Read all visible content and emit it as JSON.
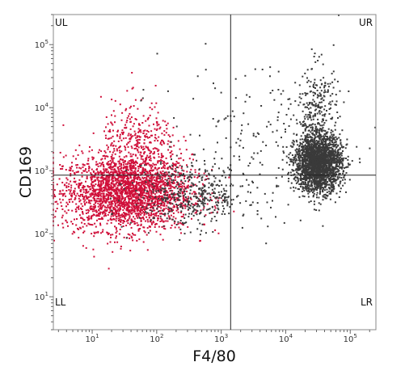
{
  "chart_data": {
    "type": "scatter",
    "xlabel": "F4/80",
    "ylabel": "CD169",
    "x_scale": "log",
    "y_scale": "log",
    "xlim": [
      2.5,
      250000
    ],
    "ylim": [
      3,
      300000
    ],
    "x_ticks": [
      {
        "value": 10,
        "base": "10",
        "exp": "1"
      },
      {
        "value": 100,
        "base": "10",
        "exp": "2"
      },
      {
        "value": 1000,
        "base": "10",
        "exp": "3"
      },
      {
        "value": 10000,
        "base": "10",
        "exp": "4"
      },
      {
        "value": 100000,
        "base": "10",
        "exp": "5"
      }
    ],
    "y_ticks": [
      {
        "value": 10,
        "base": "10",
        "exp": "1"
      },
      {
        "value": 100,
        "base": "10",
        "exp": "2"
      },
      {
        "value": 1000,
        "base": "10",
        "exp": "3"
      },
      {
        "value": 10000,
        "base": "10",
        "exp": "4"
      },
      {
        "value": 100000,
        "base": "10",
        "exp": "5"
      }
    ],
    "gates": {
      "x": 1400,
      "y": 850
    },
    "quadrant_labels": {
      "UL": "UL",
      "UR": "UR",
      "LL": "LL",
      "LR": "LR"
    },
    "populations": [
      {
        "color": "#d0103a",
        "center_x": 35,
        "center_y": 450,
        "spread_x_decades": 0.5,
        "spread_y_decades": 0.3,
        "count": 2600
      },
      {
        "color": "#d0103a",
        "center_x": 55,
        "center_y": 2500,
        "spread_x_decades": 0.3,
        "spread_y_decades": 0.35,
        "count": 350
      },
      {
        "color": "#3a3a3a",
        "center_x": 350,
        "center_y": 400,
        "spread_x_decades": 0.45,
        "spread_y_decades": 0.25,
        "count": 450
      },
      {
        "color": "#3a3a3a",
        "center_x": 32000,
        "center_y": 1300,
        "spread_x_decades": 0.18,
        "spread_y_decades": 0.22,
        "count": 2300
      },
      {
        "color": "#3a3a3a",
        "center_x": 30000,
        "center_y": 8000,
        "spread_x_decades": 0.18,
        "spread_y_decades": 0.4,
        "count": 300
      },
      {
        "color": "#3a3a3a",
        "center_x": 3000,
        "center_y": 3000,
        "spread_x_decades": 0.7,
        "spread_y_decades": 0.6,
        "count": 160
      }
    ]
  }
}
